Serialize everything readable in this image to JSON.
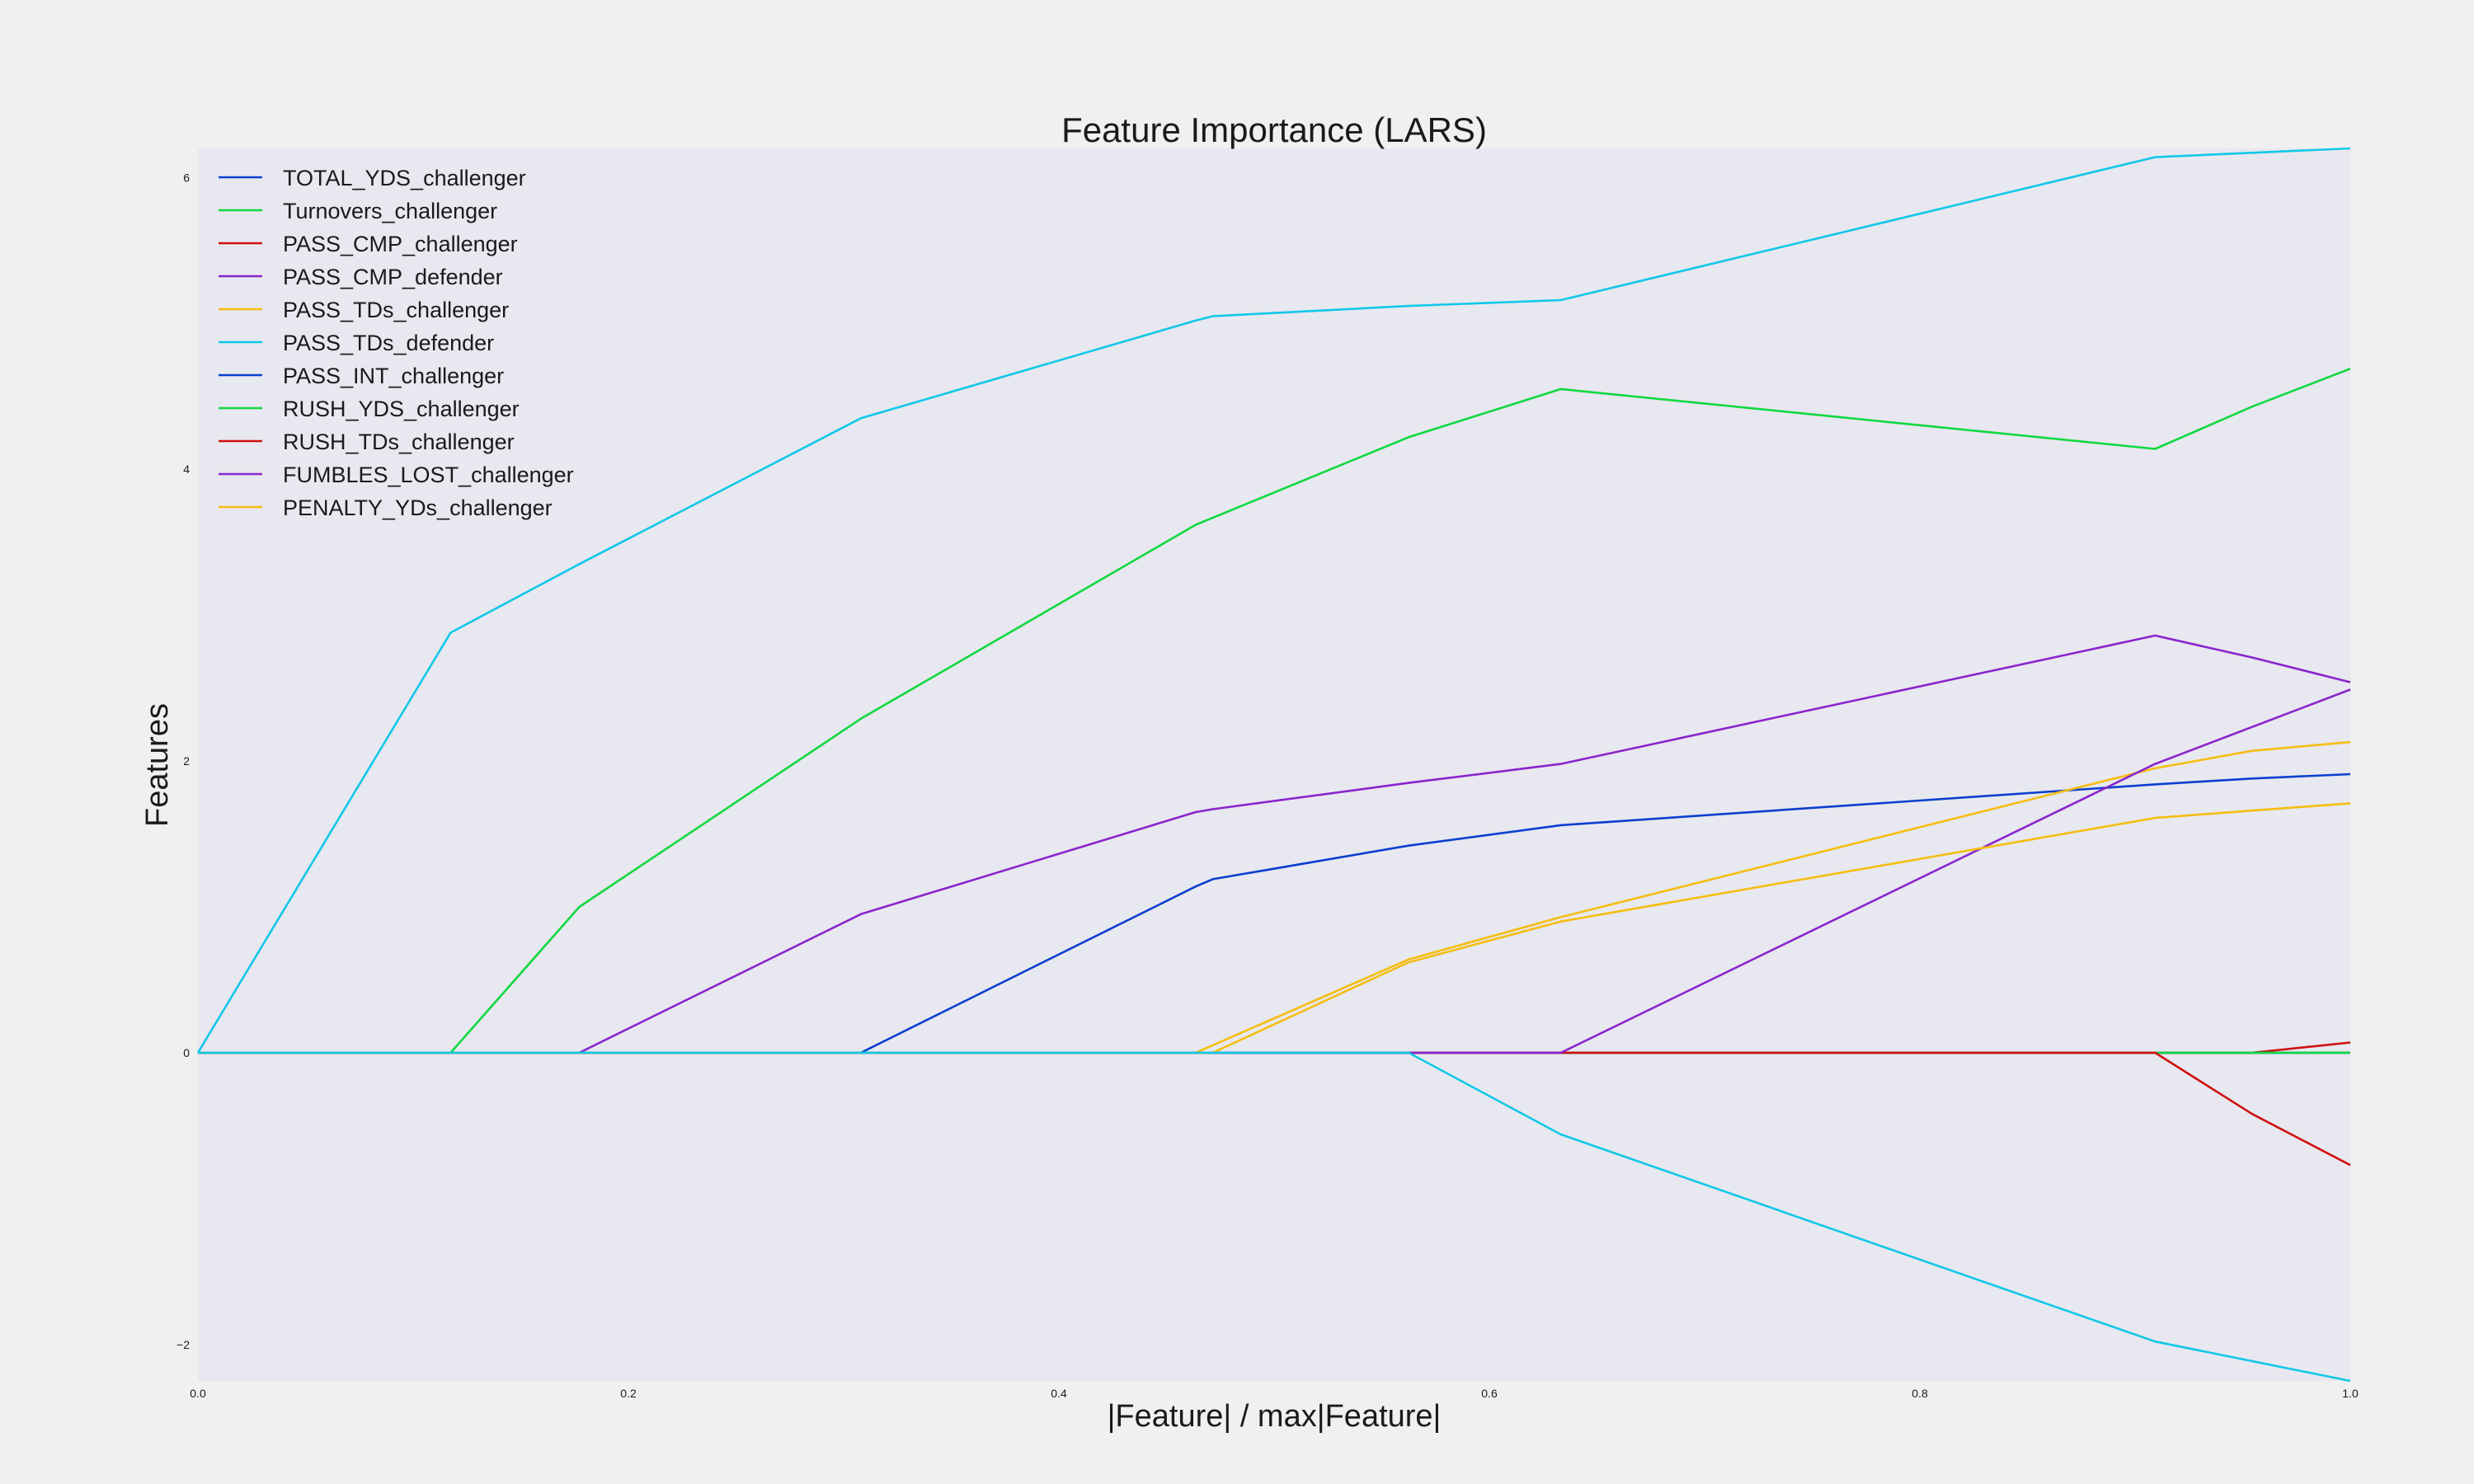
{
  "chart_data": {
    "type": "line",
    "title": "Feature Importance (LARS)",
    "xlabel": "|Feature| / max|Feature|",
    "ylabel": "Features",
    "xlim": [
      0.0,
      1.0
    ],
    "ylim": [
      -2.25,
      6.2
    ],
    "xticks": [
      0.0,
      0.2,
      0.4,
      0.6,
      0.8,
      1.0
    ],
    "xtick_labels": [
      "0.0",
      "0.2",
      "0.4",
      "0.6",
      "0.8",
      "1.0"
    ],
    "yticks": [
      -2,
      0,
      2,
      4,
      6
    ],
    "ytick_labels": [
      "−2",
      "0",
      "2",
      "4",
      "6"
    ],
    "grid": false,
    "legend_position": "top-left",
    "plot_background": "#e8e8f0",
    "figure_background": "#f0f0f0",
    "series": [
      {
        "name": "TOTAL_YDS_challenger",
        "color": "#0a3fcf",
        "x": [
          0,
          0.308,
          0.4636,
          0.4715,
          0.5625,
          0.6332,
          0.9093,
          0.9544,
          1.0
        ],
        "y": [
          0,
          0,
          1.14,
          1.19,
          1.42,
          1.56,
          1.84,
          1.88,
          1.91
        ]
      },
      {
        "name": "Turnovers_challenger",
        "color": "#10d840",
        "x": [
          0,
          0.1174,
          0.1772,
          0.308,
          0.4636,
          0.5625,
          0.6332,
          0.9093,
          0.9544,
          1.0
        ],
        "y": [
          0,
          0,
          1.0,
          2.29,
          3.62,
          4.22,
          4.55,
          4.14,
          4.43,
          4.69
        ]
      },
      {
        "name": "PASS_CMP_challenger",
        "color": "#d01010",
        "x": [
          0,
          0.9544,
          1.0
        ],
        "y": [
          0,
          0,
          0.07
        ]
      },
      {
        "name": "PASS_CMP_defender",
        "color": "#8a25cc",
        "x": [
          0,
          0.1772,
          0.308,
          0.4636,
          0.4715,
          0.5625,
          0.6332,
          0.9093,
          0.9544,
          1.0
        ],
        "y": [
          0,
          0,
          0.95,
          1.65,
          1.67,
          1.85,
          1.98,
          2.86,
          2.71,
          2.54
        ]
      },
      {
        "name": "PASS_TDs_challenger",
        "color": "#f5bd10",
        "x": [
          0,
          0.4636,
          0.5625,
          0.6332,
          0.9093,
          0.9544,
          1.0
        ],
        "y": [
          0,
          0,
          0.64,
          0.93,
          1.95,
          2.07,
          2.13
        ]
      },
      {
        "name": "PASS_TDs_defender",
        "color": "#10c8e8",
        "x": [
          0,
          0.1174,
          0.1772,
          0.308,
          0.4636,
          0.4715,
          0.5625,
          0.6332,
          0.9093,
          0.9544,
          1.0
        ],
        "y": [
          0,
          2.88,
          3.35,
          4.35,
          5.02,
          5.05,
          5.12,
          5.16,
          6.14,
          6.17,
          6.2
        ]
      },
      {
        "name": "PASS_INT_challenger",
        "color": "#0a3fcf",
        "x": [
          0,
          1.0
        ],
        "y": [
          0,
          0
        ]
      },
      {
        "name": "RUSH_YDS_challenger",
        "color": "#10d840",
        "x": [
          0,
          1.0
        ],
        "y": [
          0,
          0
        ]
      },
      {
        "name": "RUSH_TDs_challenger",
        "color": "#d01010",
        "x": [
          0,
          0.9093,
          0.9544,
          1.0
        ],
        "y": [
          0,
          0,
          -0.42,
          -0.77
        ]
      },
      {
        "name": "FUMBLES_LOST_challenger",
        "color": "#8a25cc",
        "x": [
          0,
          0.6332,
          0.9093,
          1.0
        ],
        "y": [
          0,
          0,
          1.98,
          2.49
        ]
      },
      {
        "name": "PENALTY_YDs_challenger",
        "color": "#f5bd10",
        "x": [
          0,
          0.4715,
          0.5625,
          0.6332,
          0.9093,
          0.9544,
          1.0
        ],
        "y": [
          0,
          0,
          0.62,
          0.9,
          1.61,
          1.66,
          1.71
        ]
      },
      {
        "name": "",
        "color": "#10c8e8",
        "x": [
          0,
          0.5625,
          0.6332,
          0.9093,
          1.0
        ],
        "y": [
          0,
          0,
          -0.56,
          -1.98,
          -2.25
        ]
      }
    ]
  }
}
